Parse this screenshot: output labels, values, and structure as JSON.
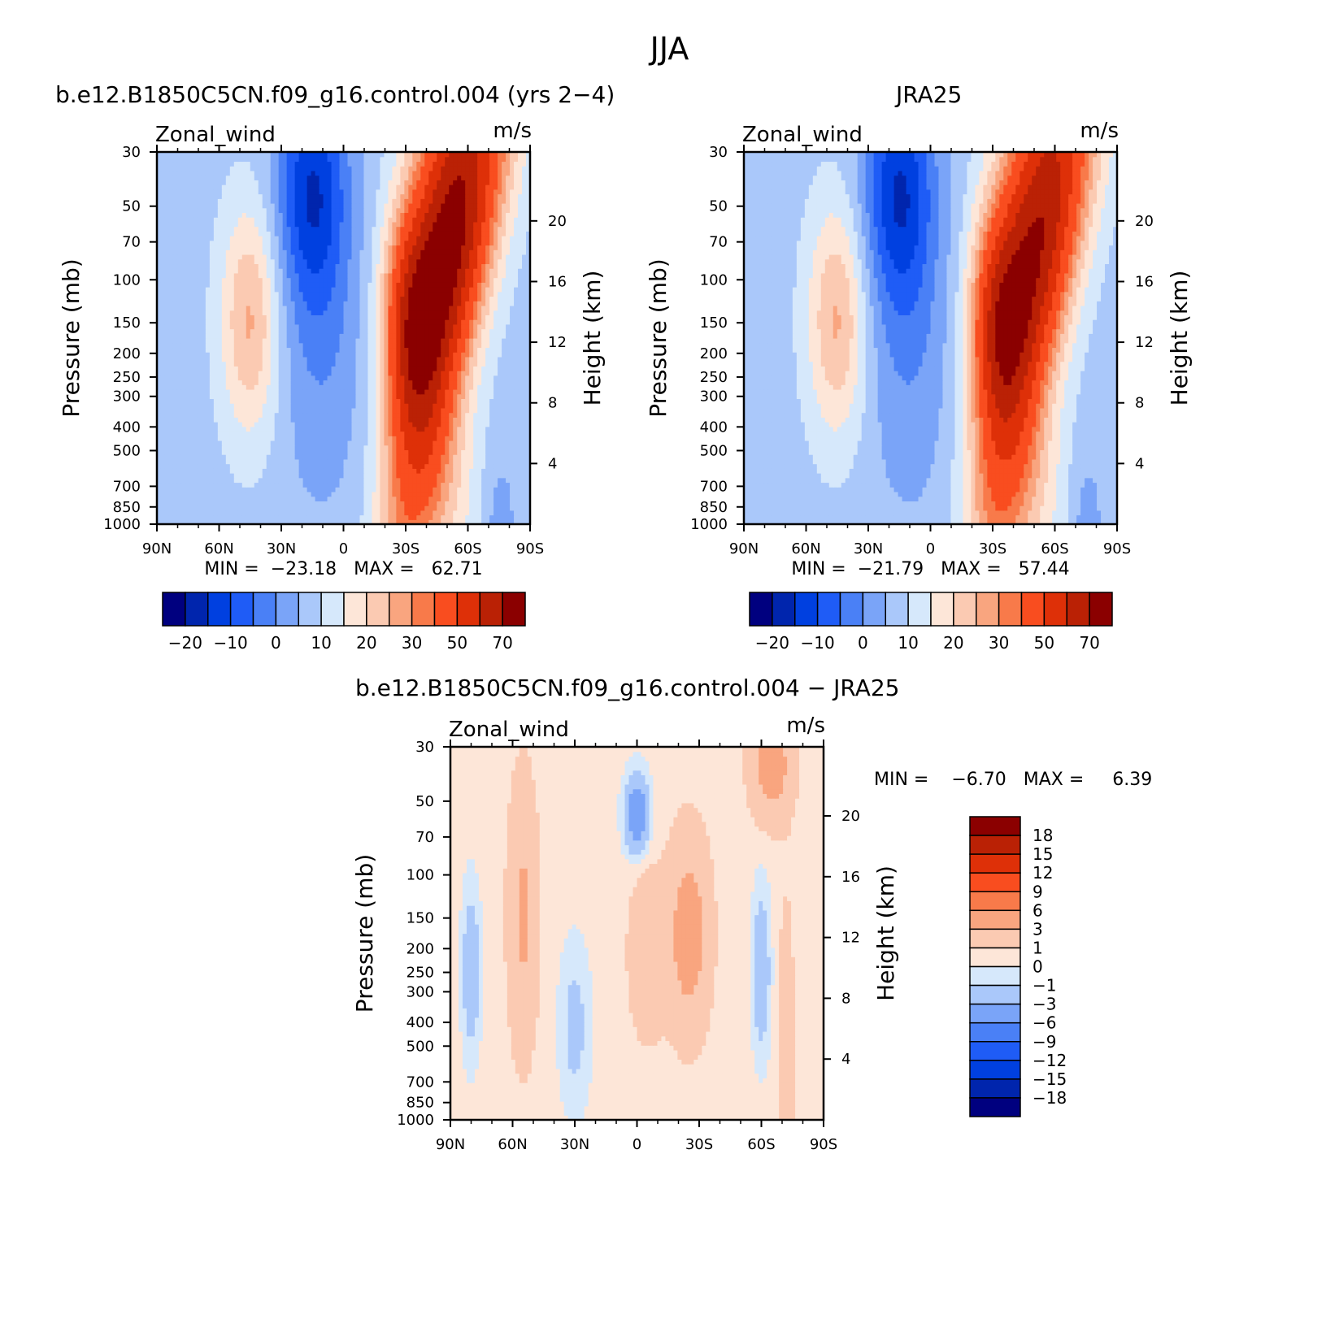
{
  "figure": {
    "season": "JJA"
  },
  "chart_data": [
    {
      "type": "heatmap",
      "title": "b.e12.B1850C5CN.f09_g16.control.004 (yrs 2−4)",
      "field_label": "Zonal_wind",
      "units": "m/s",
      "xlabel": "",
      "ylabel": "Pressure (mb)",
      "ylabel_right": "Height (km)",
      "x_ticks": [
        "90N",
        "60N",
        "30N",
        "0",
        "30S",
        "60S",
        "90S"
      ],
      "y_ticks": [
        "30",
        "50",
        "70",
        "100",
        "150",
        "200",
        "250",
        "300",
        "400",
        "500",
        "700",
        "850",
        "1000"
      ],
      "y_right_ticks": [
        "20",
        "16",
        "12",
        "8",
        "4"
      ],
      "y_scale": "log",
      "ylim": [
        1000,
        30
      ],
      "xlim": [
        90,
        -90
      ],
      "stats_text": "MIN =  −23.18   MAX =   62.71",
      "min": -23.18,
      "max": 62.71,
      "colorbar_orientation": "horizontal",
      "colorbar_labels": [
        "−20",
        "−10",
        "0",
        "10",
        "20",
        "30",
        "50",
        "70"
      ],
      "levels": [
        -25,
        -20,
        -15,
        -10,
        -5,
        0,
        5,
        10,
        15,
        20,
        25,
        30,
        40,
        50,
        60,
        70
      ]
    },
    {
      "type": "heatmap",
      "title": "JRA25",
      "field_label": "Zonal_wind",
      "units": "m/s",
      "xlabel": "",
      "ylabel": "Pressure (mb)",
      "ylabel_right": "Height (km)",
      "x_ticks": [
        "90N",
        "60N",
        "30N",
        "0",
        "30S",
        "60S",
        "90S"
      ],
      "y_ticks": [
        "30",
        "50",
        "70",
        "100",
        "150",
        "200",
        "250",
        "300",
        "400",
        "500",
        "700",
        "850",
        "1000"
      ],
      "y_right_ticks": [
        "20",
        "16",
        "12",
        "8",
        "4"
      ],
      "y_scale": "log",
      "ylim": [
        1000,
        30
      ],
      "xlim": [
        90,
        -90
      ],
      "stats_text": "MIN =  −21.79   MAX =   57.44",
      "min": -21.79,
      "max": 57.44,
      "colorbar_orientation": "horizontal",
      "colorbar_labels": [
        "−20",
        "−10",
        "0",
        "10",
        "20",
        "30",
        "50",
        "70"
      ],
      "levels": [
        -25,
        -20,
        -15,
        -10,
        -5,
        0,
        5,
        10,
        15,
        20,
        25,
        30,
        40,
        50,
        60,
        70
      ]
    },
    {
      "type": "heatmap",
      "title": "b.e12.B1850C5CN.f09_g16.control.004 − JRA25",
      "field_label": "Zonal_wind",
      "units": "m/s",
      "xlabel": "",
      "ylabel": "Pressure (mb)",
      "ylabel_right": "Height (km)",
      "x_ticks": [
        "90N",
        "60N",
        "30N",
        "0",
        "30S",
        "60S",
        "90S"
      ],
      "y_ticks": [
        "30",
        "50",
        "70",
        "100",
        "150",
        "200",
        "250",
        "300",
        "400",
        "500",
        "700",
        "850",
        "1000"
      ],
      "y_right_ticks": [
        "20",
        "16",
        "12",
        "8",
        "4"
      ],
      "y_scale": "log",
      "ylim": [
        1000,
        30
      ],
      "xlim": [
        90,
        -90
      ],
      "stats_text": "MIN =    −6.70   MAX =     6.39",
      "min": -6.7,
      "max": 6.39,
      "colorbar_orientation": "vertical",
      "colorbar_labels": [
        "18",
        "15",
        "12",
        "9",
        "6",
        "3",
        "1",
        "0",
        "−1",
        "−3",
        "−6",
        "−9",
        "−12",
        "−15",
        "−18"
      ]
    }
  ],
  "colors": {
    "main_palette": [
      "#00007f",
      "#0025ad",
      "#0040e0",
      "#1f5cf6",
      "#4a80f6",
      "#7aa4f8",
      "#aac8fa",
      "#d6e8fb",
      "#fde6d8",
      "#fbcab2",
      "#f9a57f",
      "#f87a4a",
      "#f94d1f",
      "#de3008",
      "#ba2105",
      "#8b0000"
    ],
    "diff_palette_top_to_bottom": [
      "#8b0000",
      "#ba2105",
      "#de3008",
      "#f94d1f",
      "#f87a4a",
      "#f9a57f",
      "#fbcab2",
      "#fde6d8",
      "#d6e8fb",
      "#aac8fa",
      "#7aa4f8",
      "#4a80f6",
      "#1f5cf6",
      "#0040e0",
      "#0025ad",
      "#00007f"
    ]
  }
}
